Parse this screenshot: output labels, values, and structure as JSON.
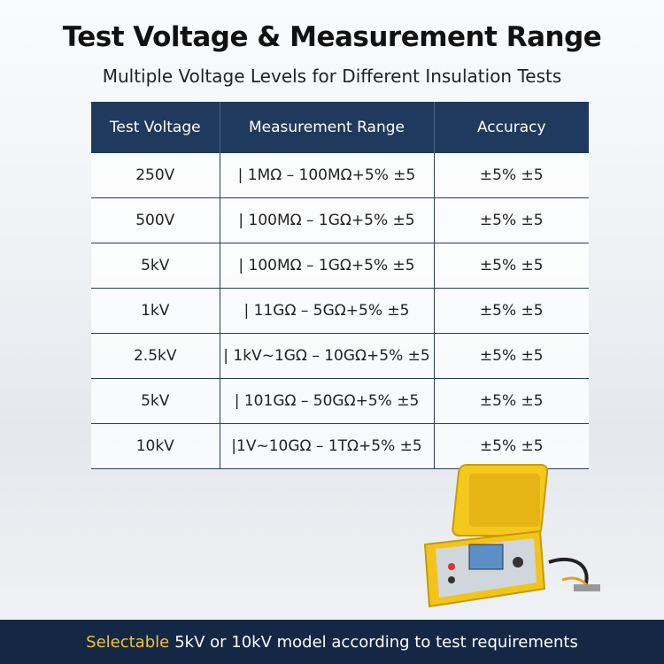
{
  "header": {
    "title": "Test Voltage & Measurement Range",
    "subtitle": "Multiple Voltage Levels for Different Insulation Tests"
  },
  "table": {
    "headers": [
      "Test Voltage",
      "Measurement Range",
      "Accuracy"
    ],
    "rows": [
      [
        "250V",
        "| 1MΩ – 100MΩ+5% ±5",
        "±5% ±5"
      ],
      [
        "500V",
        "| 100MΩ – 1GΩ+5% ±5",
        "±5% ±5"
      ],
      [
        "5kV",
        "| 100MΩ – 1GΩ+5% ±5",
        "±5% ±5"
      ],
      [
        "1kV",
        "| 11GΩ – 5GΩ+5% ±5",
        "±5% ±5"
      ],
      [
        "2.5kV",
        "| 1kV~1GΩ – 10GΩ+5% ±5",
        "±5% ±5"
      ],
      [
        "5kV",
        "| 101GΩ – 50GΩ+5% ±5",
        "±5% ±5"
      ],
      [
        "10kV",
        "|1V~10GΩ – 1TΩ+5% ±5",
        "±5% ±5"
      ]
    ]
  },
  "footer": {
    "highlight": "Selectable",
    "text": "5kV or 10kV model according to test requirements"
  }
}
